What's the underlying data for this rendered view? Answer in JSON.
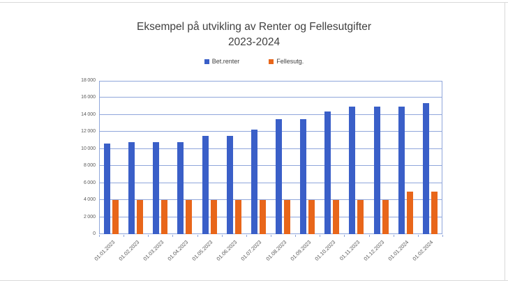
{
  "frame": {
    "edge_color": "#d9d9d9"
  },
  "chart_data": {
    "type": "bar",
    "title": "Eksempel på utvikling av Renter og Fellesutgifter",
    "title_line2": "2023-2024",
    "categories": [
      "01.01.2023",
      "01.02.2023",
      "01.03.2023",
      "01.04.2023",
      "01.05.2023",
      "01.06.2023",
      "01.07.2023",
      "01.08.2023",
      "01.09.2023",
      "01.10.2023",
      "01.11.2023",
      "01.12.2023",
      "01.01.2024",
      "01.02.2024"
    ],
    "series": [
      {
        "name": "Bet.renter",
        "color": "#3A5FC8",
        "values": [
          10600,
          10800,
          10800,
          10800,
          11500,
          11500,
          12300,
          13500,
          13500,
          14400,
          15000,
          15000,
          15000,
          15400
        ]
      },
      {
        "name": "Fellesutg.",
        "color": "#E8661A",
        "values": [
          4000,
          4000,
          4000,
          4000,
          4000,
          4000,
          4000,
          4000,
          4000,
          4000,
          4000,
          4000,
          5000,
          5000
        ]
      }
    ],
    "xlabel": "",
    "ylabel": "",
    "ylim": [
      0,
      18000
    ],
    "ytick_step": 2000,
    "grid": true,
    "gridline_color": "#8FA6DB",
    "legend_position": "top-center",
    "axis_text_color": "#595959",
    "title_color": "#404040"
  }
}
